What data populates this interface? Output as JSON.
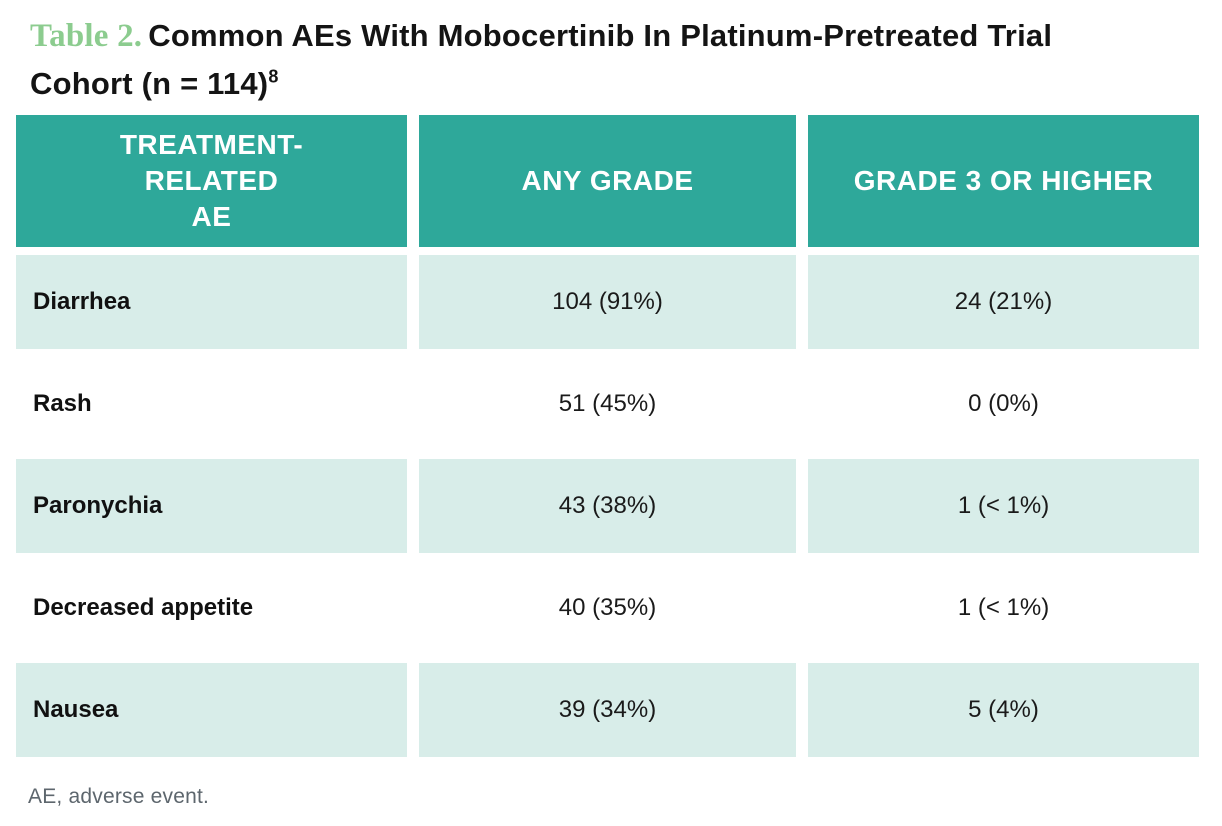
{
  "title": {
    "label": "Table 2.",
    "line1": "Common AEs With Mobocertinib In Platinum-Pretreated Trial",
    "line2": "Cohort (n = 114)",
    "superscript": "8"
  },
  "table": {
    "headers": {
      "treatment_related_ae": "TREATMENT-\nRELATED\nAE",
      "any_grade": "ANY GRADE",
      "grade_3_or_higher": "GRADE 3 OR HIGHER"
    },
    "rows": [
      {
        "ae": "Diarrhea",
        "any_grade": "104 (91%)",
        "grade_3_or_higher": "24 (21%)"
      },
      {
        "ae": "Rash",
        "any_grade": "51 (45%)",
        "grade_3_or_higher": "0 (0%)"
      },
      {
        "ae": "Paronychia",
        "any_grade": "43 (38%)",
        "grade_3_or_higher": "1 (< 1%)"
      },
      {
        "ae": "Decreased appetite",
        "any_grade": "40 (35%)",
        "grade_3_or_higher": "1 (< 1%)"
      },
      {
        "ae": "Nausea",
        "any_grade": "39 (34%)",
        "grade_3_or_higher": "5 (4%)"
      }
    ]
  },
  "footnote": "AE, adverse event.",
  "colors": {
    "header_bg": "#2EA89A",
    "row_shaded_bg": "#D8EDE9",
    "table_label_green": "#8CCC8F",
    "footnote_gray": "#5D666D"
  }
}
